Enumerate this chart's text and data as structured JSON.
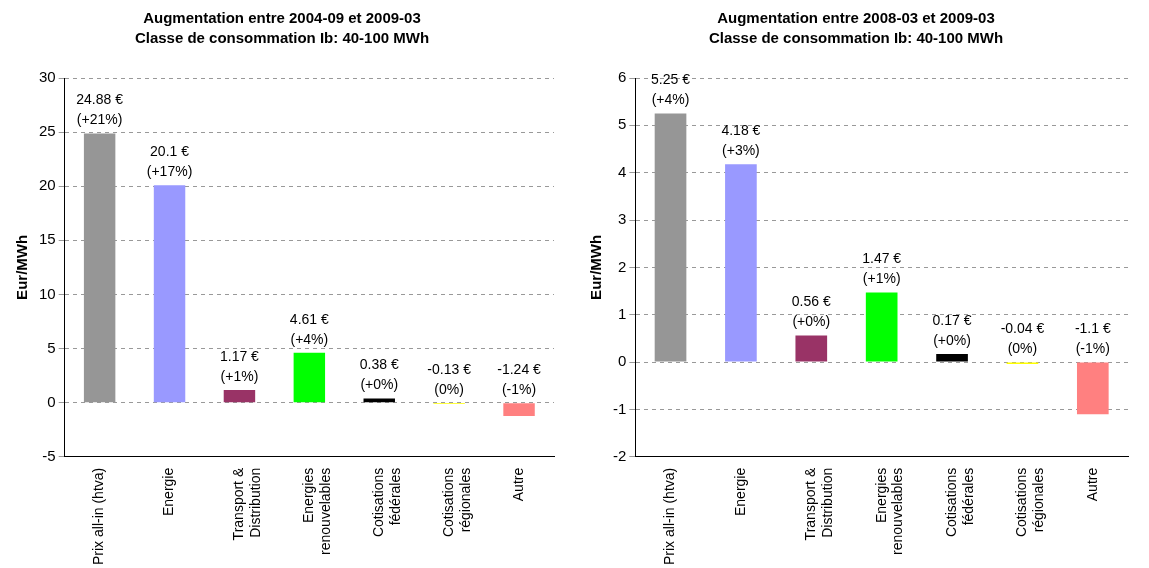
{
  "chart_data": [
    {
      "type": "bar",
      "title": "Augmentation entre 2004-09 et 2009-03",
      "subtitle": "Classe de consommation Ib: 40-100 MWh",
      "ylabel": "Eur/MWh",
      "categories": [
        "Prix all-in (htva)",
        "Energie",
        "Transport & Distribution",
        "Energies renouvelables",
        "Cotisations fédérales",
        "Cotisations régionales",
        "Autre"
      ],
      "values": [
        24.88,
        20.1,
        1.17,
        4.61,
        0.38,
        -0.13,
        -1.24
      ],
      "colors": [
        "#969696",
        "#9999ff",
        "#993366",
        "#00ff00",
        "#000000",
        "#ffff00",
        "#ff8080"
      ],
      "value_labels": [
        "24.88 € (+21%)",
        "20.1 € (+17%)",
        "1.17 € (+1%)",
        "4.61 € (+4%)",
        "0.38 € (+0%)",
        "-0.13 € (0%)",
        "-1.24 € (-1%)"
      ],
      "ylim": [
        -5,
        30
      ],
      "yticks": [
        -5,
        0,
        5,
        10,
        15,
        20,
        25,
        30
      ],
      "grid": "y",
      "legend": false
    },
    {
      "type": "bar",
      "title": "Augmentation entre 2008-03 et 2009-03",
      "subtitle": "Classe de consommation Ib: 40-100 MWh",
      "ylabel": "Eur/MWh",
      "categories": [
        "Prix all-in (htva)",
        "Energie",
        "Transport & Distribution",
        "Energies renouvelables",
        "Cotisations fédérales",
        "Cotisations régionales",
        "Autre"
      ],
      "values": [
        5.25,
        4.18,
        0.56,
        1.47,
        0.17,
        -0.04,
        -1.1
      ],
      "colors": [
        "#969696",
        "#9999ff",
        "#993366",
        "#00ff00",
        "#000000",
        "#ffff00",
        "#ff8080"
      ],
      "value_labels": [
        "5.25 € (+4%)",
        "4.18 € (+3%)",
        "0.56 € (+0%)",
        "1.47 € (+1%)",
        "0.17 € (+0%)",
        "-0.04 € (0%)",
        "-1.1 € (-1%)"
      ],
      "ylim": [
        -2,
        6
      ],
      "yticks": [
        -2,
        -1,
        0,
        1,
        2,
        3,
        4,
        5,
        6
      ],
      "grid": "y",
      "legend": false
    }
  ]
}
